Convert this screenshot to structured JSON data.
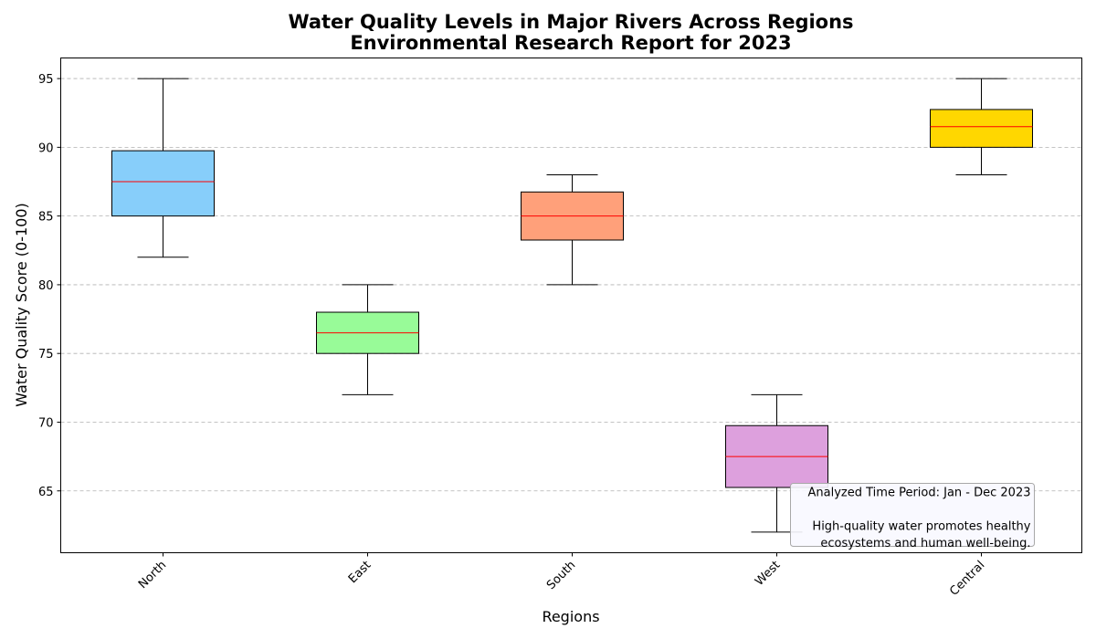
{
  "chart_data": {
    "type": "box",
    "title": "Water Quality Levels in Major Rivers Across Regions",
    "subtitle": "Environmental Research Report for 2023",
    "xlabel": "Regions",
    "ylabel": "Water Quality Score (0-100)",
    "ylim": [
      60.5,
      96.5
    ],
    "yticks": [
      65,
      70,
      75,
      80,
      85,
      90,
      95
    ],
    "grid": "y-dashed",
    "categories": [
      "North",
      "East",
      "South",
      "West",
      "Central"
    ],
    "boxes": [
      {
        "category": "North",
        "whisker_low": 82,
        "q1": 85,
        "median": 87.5,
        "q3": 89.75,
        "whisker_high": 95,
        "color": "#87CEFA"
      },
      {
        "category": "East",
        "whisker_low": 72,
        "q1": 75,
        "median": 76.5,
        "q3": 78,
        "whisker_high": 80,
        "color": "#98FB98"
      },
      {
        "category": "South",
        "whisker_low": 80,
        "q1": 83.25,
        "median": 85,
        "q3": 86.75,
        "whisker_high": 88,
        "color": "#FFA07A"
      },
      {
        "category": "West",
        "whisker_low": 62,
        "q1": 65.25,
        "median": 67.5,
        "q3": 69.75,
        "whisker_high": 72,
        "color": "#DDA0DD"
      },
      {
        "category": "Central",
        "whisker_low": 88,
        "q1": 90,
        "median": 91.5,
        "q3": 92.75,
        "whisker_high": 95,
        "color": "#FFD700"
      }
    ],
    "median_color": "#ff0000",
    "annotation": {
      "placement": "bottom-right",
      "lines": [
        "Analyzed Time Period: Jan - Dec 2023",
        "",
        "High-quality water promotes healthy",
        "ecosystems and human well-being."
      ]
    }
  }
}
